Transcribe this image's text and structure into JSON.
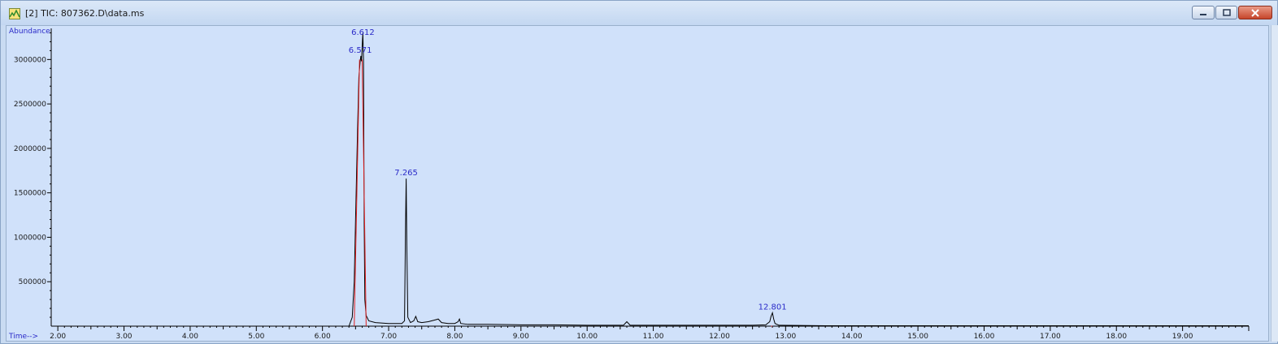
{
  "window": {
    "title": "[2] TIC: 807362.D\\data.ms",
    "icons": {
      "app": "chromatogram-app-icon",
      "minimize": "minimize-icon",
      "maximize": "maximize-icon",
      "close": "close-icon"
    }
  },
  "colors": {
    "trace": "#000000",
    "baseline": "#e02020",
    "labels": "#2a2ac8",
    "plot_bg": "#d0e1fa"
  },
  "chart_data": {
    "type": "line",
    "title": "",
    "ylabel": "Abundance",
    "xlabel": "Time-->",
    "xlim": [
      1.9,
      20.0
    ],
    "ylim": [
      0,
      3350000
    ],
    "x_ticks": [
      "2.00",
      "3.00",
      "4.00",
      "5.00",
      "6.00",
      "7.00",
      "8.00",
      "9.00",
      "10.00",
      "11.00",
      "12.00",
      "13.00",
      "14.00",
      "15.00",
      "16.00",
      "17.00",
      "18.00",
      "19.00"
    ],
    "y_ticks": [
      "500000",
      "1000000",
      "1500000",
      "2000000",
      "2500000",
      "3000000"
    ],
    "grid": false,
    "series": [
      {
        "x": [
          1.9,
          6.4,
          6.45,
          6.48,
          6.5,
          6.53,
          6.55,
          6.57,
          6.58,
          6.59,
          6.6,
          6.61,
          6.62,
          6.63,
          6.64,
          6.66,
          6.7,
          6.8,
          7.0,
          7.2,
          7.24,
          7.255,
          7.265,
          7.275,
          7.29,
          7.33,
          7.38,
          7.41,
          7.44,
          7.5,
          7.6,
          7.7,
          7.75,
          7.8,
          7.9,
          8.0,
          8.05,
          8.07,
          8.09,
          8.2,
          8.5,
          9.0,
          9.5,
          10.0,
          10.55,
          10.6,
          10.65,
          11.0,
          11.5,
          12.0,
          12.5,
          12.7,
          12.76,
          12.78,
          12.801,
          12.82,
          12.84,
          12.9,
          13.2,
          13.6,
          20.0
        ],
        "y": [
          0,
          0,
          100000,
          500000,
          1200000,
          2200000,
          2800000,
          2980000,
          3040000,
          2980000,
          3150000,
          3300000,
          3000000,
          1200000,
          300000,
          120000,
          60000,
          40000,
          30000,
          30000,
          60000,
          1100000,
          1660000,
          900000,
          100000,
          40000,
          60000,
          110000,
          50000,
          40000,
          50000,
          70000,
          80000,
          40000,
          30000,
          30000,
          50000,
          80000,
          30000,
          20000,
          20000,
          15000,
          15000,
          10000,
          10000,
          50000,
          10000,
          10000,
          10000,
          10000,
          10000,
          15000,
          50000,
          110000,
          150000,
          80000,
          30000,
          10000,
          8000,
          5000,
          5000
        ]
      }
    ],
    "peak_labels": [
      {
        "x": 6.612,
        "y": 3300000,
        "text": "6.612"
      },
      {
        "x": 6.571,
        "y": 3040000,
        "text": "6.571"
      },
      {
        "x": 7.265,
        "y": 1660000,
        "text": "7.265"
      },
      {
        "x": 12.801,
        "y": 150000,
        "text": "12.801"
      }
    ],
    "integration_baselines": [
      {
        "x1": 6.48,
        "x2": 6.56,
        "y1": 0,
        "y2": 3000000
      },
      {
        "x1": 6.6,
        "x2": 6.66,
        "y1": 3000000,
        "y2": 0
      },
      {
        "x1": 12.78,
        "x2": 12.8,
        "y1": 0,
        "y2": 0
      }
    ]
  }
}
